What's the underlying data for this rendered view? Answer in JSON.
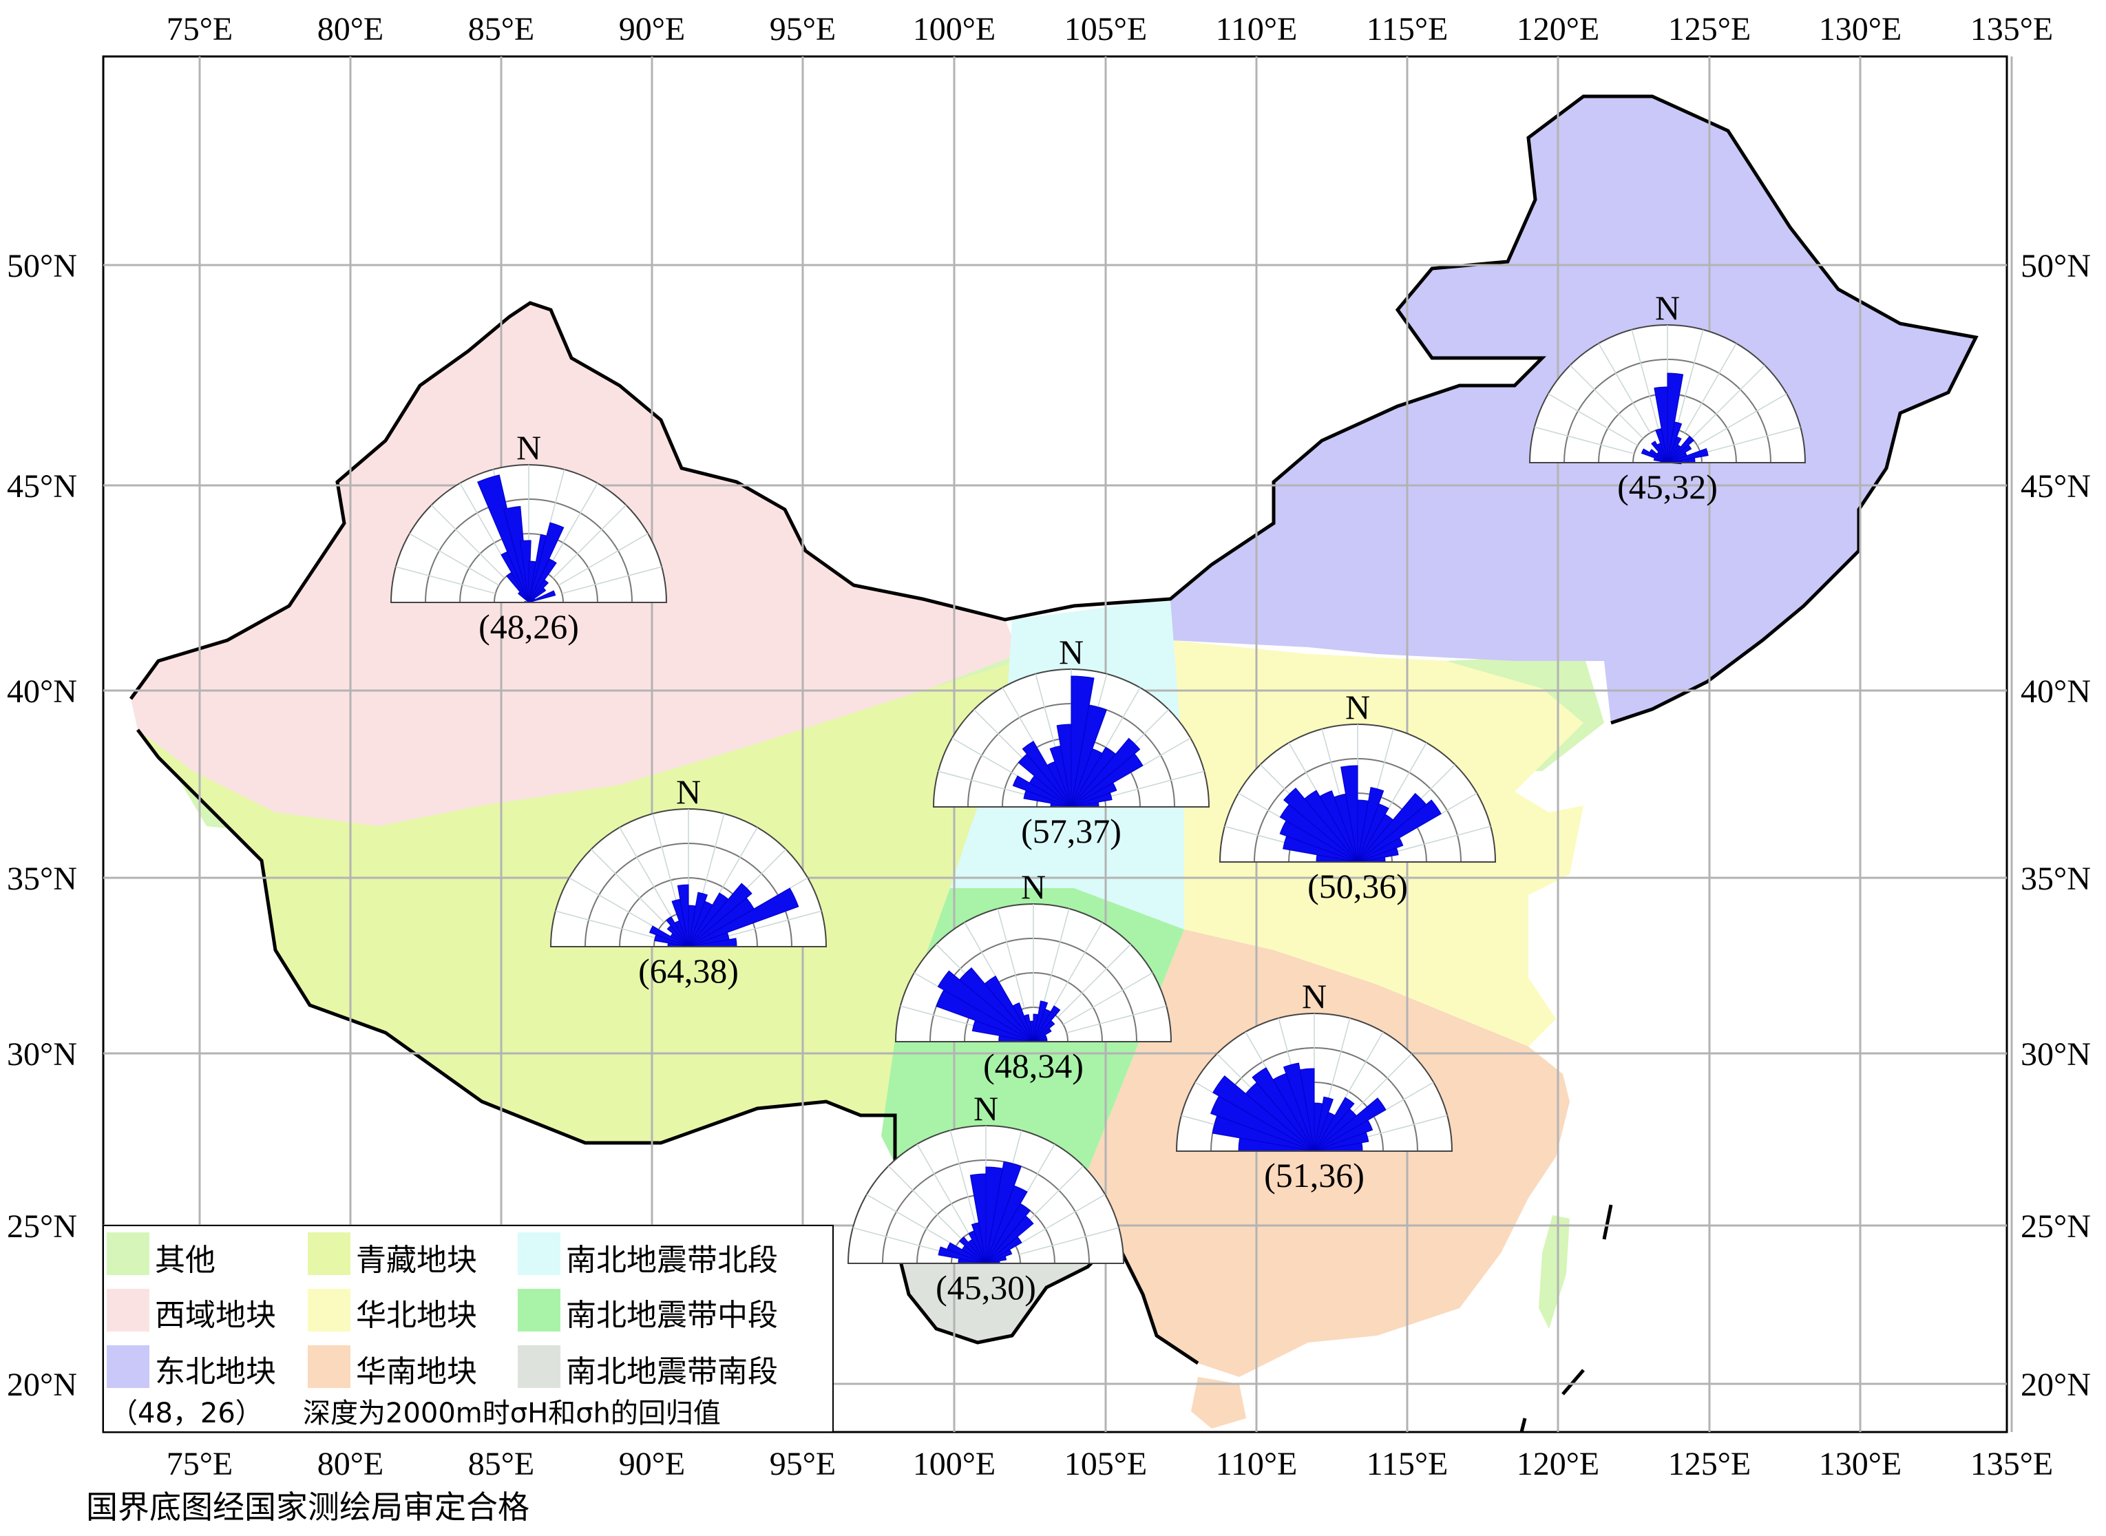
{
  "map": {
    "lon_ticks": [
      "75°E",
      "80°E",
      "85°E",
      "90°E",
      "95°E",
      "100°E",
      "105°E",
      "110°E",
      "115°E",
      "120°E",
      "125°E",
      "130°E",
      "135°E"
    ],
    "lat_ticks": [
      "50°N",
      "45°N",
      "40°N",
      "35°N",
      "30°N",
      "25°N",
      "20°N"
    ]
  },
  "regions": {
    "qita": {
      "name": "其他",
      "color": "#d6f5b8"
    },
    "xiyu": {
      "name": "西域地块",
      "color": "#fbe2e2"
    },
    "dongbei": {
      "name": "东北地块",
      "color": "#c9c8f8"
    },
    "qingzang": {
      "name": "青藏地块",
      "color": "#e6f7a8"
    },
    "huabei": {
      "name": "华北地块",
      "color": "#fbfbbf"
    },
    "huanan": {
      "name": "华南地块",
      "color": "#fad9bd"
    },
    "nbn": {
      "name": "南北地震带北段",
      "color": "#dbfafa"
    },
    "nbz": {
      "name": "南北地震带中段",
      "color": "#a8f3a8"
    },
    "nbs": {
      "name": "南北地震带南段",
      "color": "#dde2dd"
    }
  },
  "legend": {
    "note_pair": "（48，26）",
    "note_text": "深度为2000m时σH和σh的回归值"
  },
  "roses": [
    {
      "id": "xiyu",
      "north": "N",
      "label": "(48,26)",
      "petals": [
        [
          135,
          0.1
        ],
        [
          125,
          0.25
        ],
        [
          115,
          0.4
        ],
        [
          108,
          0.95
        ],
        [
          100,
          0.7
        ],
        [
          93,
          0.45
        ],
        [
          85,
          0.3
        ],
        [
          75,
          0.5
        ],
        [
          70,
          0.6
        ],
        [
          60,
          0.35
        ],
        [
          50,
          0.2
        ],
        [
          40,
          0.15
        ],
        [
          30,
          0.05
        ],
        [
          20,
          0.2
        ],
        [
          170,
          0.03
        ]
      ]
    },
    {
      "id": "dongbei",
      "north": "N",
      "label": "(45,32)",
      "petals": [
        [
          175,
          0.05
        ],
        [
          165,
          0.1
        ],
        [
          155,
          0.2
        ],
        [
          145,
          0.15
        ],
        [
          135,
          0.1
        ],
        [
          125,
          0.18
        ],
        [
          115,
          0.15
        ],
        [
          105,
          0.25
        ],
        [
          95,
          0.55
        ],
        [
          85,
          0.65
        ],
        [
          75,
          0.3
        ],
        [
          65,
          0.2
        ],
        [
          55,
          0.15
        ],
        [
          45,
          0.25
        ],
        [
          35,
          0.2
        ],
        [
          25,
          0.15
        ],
        [
          15,
          0.3
        ],
        [
          5,
          0.2
        ],
        [
          0,
          0.1
        ]
      ]
    },
    {
      "id": "nbn",
      "north": "N",
      "label": "(57,37)",
      "petals": [
        [
          175,
          0.15
        ],
        [
          165,
          0.35
        ],
        [
          155,
          0.45
        ],
        [
          145,
          0.35
        ],
        [
          135,
          0.5
        ],
        [
          125,
          0.55
        ],
        [
          115,
          0.35
        ],
        [
          105,
          0.45
        ],
        [
          95,
          0.6
        ],
        [
          85,
          0.95
        ],
        [
          75,
          0.75
        ],
        [
          65,
          0.45
        ],
        [
          55,
          0.5
        ],
        [
          45,
          0.65
        ],
        [
          35,
          0.6
        ],
        [
          25,
          0.35
        ],
        [
          15,
          0.3
        ],
        [
          5,
          0.2
        ]
      ]
    },
    {
      "id": "huabei",
      "north": "N",
      "label": "(50,36)",
      "petals": [
        [
          175,
          0.3
        ],
        [
          165,
          0.55
        ],
        [
          155,
          0.6
        ],
        [
          145,
          0.65
        ],
        [
          135,
          0.7
        ],
        [
          125,
          0.6
        ],
        [
          115,
          0.55
        ],
        [
          105,
          0.5
        ],
        [
          95,
          0.7
        ],
        [
          85,
          0.45
        ],
        [
          75,
          0.55
        ],
        [
          65,
          0.45
        ],
        [
          55,
          0.4
        ],
        [
          45,
          0.65
        ],
        [
          35,
          0.7
        ],
        [
          25,
          0.35
        ],
        [
          15,
          0.3
        ],
        [
          5,
          0.2
        ]
      ]
    },
    {
      "id": "qingzang",
      "north": "N",
      "label": "(64,38)",
      "petals": [
        [
          175,
          0.15
        ],
        [
          165,
          0.25
        ],
        [
          155,
          0.3
        ],
        [
          145,
          0.15
        ],
        [
          135,
          0.2
        ],
        [
          125,
          0.25
        ],
        [
          115,
          0.2
        ],
        [
          105,
          0.35
        ],
        [
          95,
          0.45
        ],
        [
          85,
          0.3
        ],
        [
          75,
          0.4
        ],
        [
          65,
          0.35
        ],
        [
          55,
          0.45
        ],
        [
          45,
          0.6
        ],
        [
          35,
          0.55
        ],
        [
          25,
          0.85
        ],
        [
          15,
          0.3
        ],
        [
          5,
          0.35
        ]
      ]
    },
    {
      "id": "nbz",
      "north": "N",
      "label": "(48,34)",
      "petals": [
        [
          175,
          0.25
        ],
        [
          165,
          0.45
        ],
        [
          155,
          0.75
        ],
        [
          145,
          0.8
        ],
        [
          135,
          0.7
        ],
        [
          125,
          0.55
        ],
        [
          115,
          0.3
        ],
        [
          105,
          0.2
        ],
        [
          95,
          0.15
        ],
        [
          85,
          0.2
        ],
        [
          75,
          0.3
        ],
        [
          65,
          0.25
        ],
        [
          55,
          0.3
        ],
        [
          45,
          0.2
        ],
        [
          35,
          0.15
        ],
        [
          25,
          0.1
        ],
        [
          15,
          0.1
        ],
        [
          5,
          0.1
        ]
      ]
    },
    {
      "id": "huanan",
      "north": "N",
      "label": "(51,36)",
      "petals": [
        [
          175,
          0.55
        ],
        [
          165,
          0.75
        ],
        [
          155,
          0.8
        ],
        [
          145,
          0.85
        ],
        [
          135,
          0.65
        ],
        [
          125,
          0.7
        ],
        [
          115,
          0.6
        ],
        [
          105,
          0.65
        ],
        [
          95,
          0.6
        ],
        [
          85,
          0.35
        ],
        [
          75,
          0.4
        ],
        [
          65,
          0.3
        ],
        [
          55,
          0.45
        ],
        [
          45,
          0.4
        ],
        [
          35,
          0.6
        ],
        [
          25,
          0.45
        ],
        [
          15,
          0.4
        ],
        [
          5,
          0.35
        ]
      ]
    },
    {
      "id": "nbs",
      "north": "N",
      "label": "(45,30)",
      "petals": [
        [
          175,
          0.2
        ],
        [
          165,
          0.35
        ],
        [
          155,
          0.3
        ],
        [
          145,
          0.2
        ],
        [
          135,
          0.25
        ],
        [
          125,
          0.2
        ],
        [
          115,
          0.25
        ],
        [
          105,
          0.3
        ],
        [
          95,
          0.65
        ],
        [
          85,
          0.7
        ],
        [
          75,
          0.75
        ],
        [
          65,
          0.6
        ],
        [
          55,
          0.5
        ],
        [
          45,
          0.45
        ],
        [
          35,
          0.3
        ],
        [
          25,
          0.2
        ],
        [
          15,
          0.15
        ],
        [
          5,
          0.1
        ]
      ]
    }
  ],
  "footer": "国界底图经国家测绘局审定合格"
}
